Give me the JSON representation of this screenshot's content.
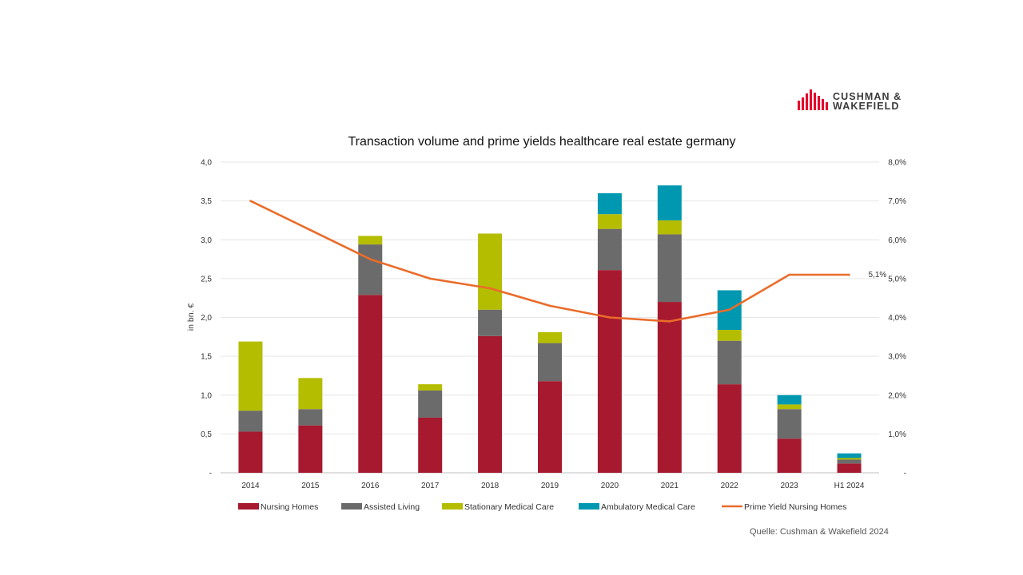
{
  "brand": {
    "line1": "CUSHMAN &",
    "line2": "WAKEFIELD",
    "color": "#e4002b"
  },
  "source": "Quelle: Cushman & Wakefield 2024",
  "chart_data": {
    "type": "bar",
    "stacked": true,
    "title": "Transaction volume and prime yields healthcare real estate germany",
    "ylabel": "in bn. €",
    "xlabel": "",
    "ylim": [
      0,
      4
    ],
    "y2lim": [
      0,
      0.08
    ],
    "yticks": [
      "-",
      "0,5",
      "1,0",
      "1,5",
      "2,0",
      "2,5",
      "3,0",
      "3,5",
      "4,0"
    ],
    "y2ticks": [
      "-",
      "1,0%",
      "2,0%",
      "3,0%",
      "4,0%",
      "5,0%",
      "6,0%",
      "7,0%",
      "8,0%"
    ],
    "categories": [
      "2014",
      "2015",
      "2016",
      "2017",
      "2018",
      "2019",
      "2020",
      "2021",
      "2022",
      "2023",
      "H1 2024"
    ],
    "series": [
      {
        "name": "Nursing Homes",
        "color": "#a6192e",
        "values": [
          0.53,
          0.61,
          2.29,
          0.71,
          1.76,
          1.18,
          2.61,
          2.2,
          1.14,
          0.44,
          0.12
        ]
      },
      {
        "name": "Assisted Living",
        "color": "#6b6b6b",
        "values": [
          0.27,
          0.21,
          0.65,
          0.35,
          0.34,
          0.49,
          0.53,
          0.87,
          0.56,
          0.38,
          0.05
        ]
      },
      {
        "name": "Stationary Medical Care",
        "color": "#b5bd00",
        "values": [
          0.89,
          0.4,
          0.11,
          0.08,
          0.98,
          0.14,
          0.19,
          0.18,
          0.14,
          0.06,
          0.02
        ]
      },
      {
        "name": "Ambulatory Medical Care",
        "color": "#0098b0",
        "values": [
          0,
          0,
          0,
          0,
          0,
          0,
          0.27,
          0.45,
          0.51,
          0.12,
          0.06
        ]
      }
    ],
    "line_series": {
      "name": "Prime Yield Nursing Homes",
      "color": "#ea6c2a",
      "axis": "right",
      "values": [
        0.07,
        0.0625,
        0.055,
        0.05,
        0.0475,
        0.043,
        0.04,
        0.039,
        0.042,
        0.051,
        0.051
      ]
    },
    "annotations": [
      {
        "text": "5,1%",
        "category": "H1 2024",
        "series": "Prime Yield Nursing Homes"
      }
    ],
    "grid": true,
    "legend": "bottom"
  }
}
